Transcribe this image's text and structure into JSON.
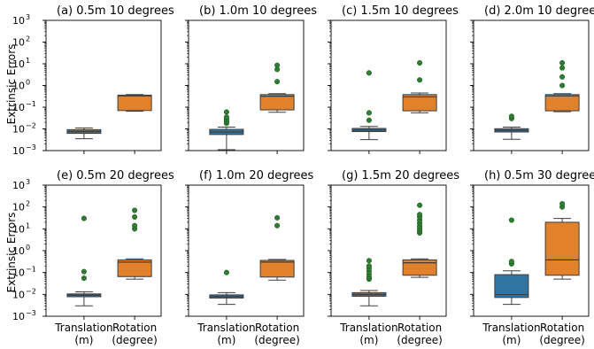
{
  "ylabel": "Extrinsic Errors",
  "categories": [
    "Translation\n(m)",
    "Rotation\n(degree)"
  ],
  "colors": {
    "translation": "#3274a1",
    "rotation": "#e1812c",
    "outlier": "#2e7d32"
  },
  "chart_data": [
    {
      "type": "box",
      "title": "(a) 0.5m 10 degrees",
      "yscale": "log",
      "ylim": [
        0.001,
        1000
      ],
      "grid": false,
      "boxes": [
        {
          "category": "Translation (m)",
          "whisker_low": 0.0035,
          "q1": 0.0062,
          "median": 0.0075,
          "q3": 0.0092,
          "whisker_high": 0.011,
          "outliers": []
        },
        {
          "category": "Rotation (degree)",
          "whisker_low": 0.065,
          "q1": 0.07,
          "median": 0.33,
          "q3": 0.36,
          "whisker_high": 0.38,
          "outliers": []
        }
      ]
    },
    {
      "type": "box",
      "title": "(b) 1.0m 10 degrees",
      "yscale": "log",
      "ylim": [
        0.001,
        1000
      ],
      "grid": false,
      "boxes": [
        {
          "category": "Translation (m)",
          "whisker_low": 0.0011,
          "q1": 0.0055,
          "median": 0.0072,
          "q3": 0.0095,
          "whisker_high": 0.012,
          "outliers": [
            0.018,
            0.022,
            0.028,
            0.035,
            0.06
          ]
        },
        {
          "category": "Rotation (degree)",
          "whisker_low": 0.058,
          "q1": 0.075,
          "median": 0.32,
          "q3": 0.38,
          "whisker_high": 0.42,
          "outliers": [
            1.5,
            5.5,
            8.5
          ]
        }
      ]
    },
    {
      "type": "box",
      "title": "(c) 1.5m 10 degrees",
      "yscale": "log",
      "ylim": [
        0.001,
        1000
      ],
      "grid": false,
      "boxes": [
        {
          "category": "Translation (m)",
          "whisker_low": 0.0032,
          "q1": 0.0075,
          "median": 0.0088,
          "q3": 0.0105,
          "whisker_high": 0.013,
          "outliers": [
            0.025,
            0.055,
            3.8
          ]
        },
        {
          "category": "Rotation (degree)",
          "whisker_low": 0.055,
          "q1": 0.068,
          "median": 0.3,
          "q3": 0.38,
          "whisker_high": 0.45,
          "outliers": [
            1.8,
            11
          ]
        }
      ]
    },
    {
      "type": "box",
      "title": "(d) 2.0m 10 degrees",
      "yscale": "log",
      "ylim": [
        0.001,
        1000
      ],
      "grid": false,
      "boxes": [
        {
          "category": "Translation (m)",
          "whisker_low": 0.0033,
          "q1": 0.0072,
          "median": 0.0085,
          "q3": 0.0102,
          "whisker_high": 0.012,
          "outliers": [
            0.03,
            0.038
          ]
        },
        {
          "category": "Rotation (degree)",
          "whisker_low": 0.062,
          "q1": 0.068,
          "median": 0.33,
          "q3": 0.38,
          "whisker_high": 0.42,
          "outliers": [
            1.0,
            2.5,
            6.5,
            11
          ]
        }
      ]
    },
    {
      "type": "box",
      "title": "(e) 0.5m 20 degrees",
      "yscale": "log",
      "ylim": [
        0.001,
        1000
      ],
      "grid": false,
      "boxes": [
        {
          "category": "Translation (m)",
          "whisker_low": 0.003,
          "q1": 0.0078,
          "median": 0.0092,
          "q3": 0.0105,
          "whisker_high": 0.013,
          "outliers": [
            0.055,
            0.11,
            30
          ]
        },
        {
          "category": "Rotation (degree)",
          "whisker_low": 0.05,
          "q1": 0.065,
          "median": 0.3,
          "q3": 0.38,
          "whisker_high": 0.42,
          "outliers": [
            10,
            14,
            35,
            70
          ]
        }
      ]
    },
    {
      "type": "box",
      "title": "(f) 1.0m 20 degrees",
      "yscale": "log",
      "ylim": [
        0.001,
        1000
      ],
      "grid": false,
      "boxes": [
        {
          "category": "Translation (m)",
          "whisker_low": 0.0035,
          "q1": 0.0068,
          "median": 0.008,
          "q3": 0.0095,
          "whisker_high": 0.012,
          "outliers": [
            0.1
          ]
        },
        {
          "category": "Rotation (degree)",
          "whisker_low": 0.045,
          "q1": 0.062,
          "median": 0.3,
          "q3": 0.36,
          "whisker_high": 0.4,
          "outliers": [
            14,
            32
          ]
        }
      ]
    },
    {
      "type": "box",
      "title": "(g) 1.5m 20 degrees",
      "yscale": "log",
      "ylim": [
        0.001,
        1000
      ],
      "grid": false,
      "boxes": [
        {
          "category": "Translation (m)",
          "whisker_low": 0.003,
          "q1": 0.0082,
          "median": 0.0098,
          "q3": 0.012,
          "whisker_high": 0.015,
          "outliers": [
            0.05,
            0.06,
            0.08,
            0.11,
            0.15,
            0.2,
            0.35
          ]
        },
        {
          "category": "Rotation (degree)",
          "whisker_low": 0.06,
          "q1": 0.075,
          "median": 0.28,
          "q3": 0.38,
          "whisker_high": 0.42,
          "outliers": [
            6.5,
            8,
            10,
            13,
            18,
            25,
            35,
            45,
            120
          ]
        }
      ]
    },
    {
      "type": "box",
      "title": "(h) 0.5m 30 degrees",
      "yscale": "log",
      "ylim": [
        0.001,
        1000
      ],
      "grid": false,
      "boxes": [
        {
          "category": "Translation (m)",
          "whisker_low": 0.0035,
          "q1": 0.0072,
          "median": 0.0098,
          "q3": 0.08,
          "whisker_high": 0.12,
          "outliers": [
            0.25,
            0.32,
            25
          ]
        },
        {
          "category": "Rotation (degree)",
          "whisker_low": 0.05,
          "q1": 0.075,
          "median": 0.38,
          "q3": 20,
          "whisker_high": 30,
          "outliers": [
            100,
            140
          ]
        }
      ]
    }
  ]
}
